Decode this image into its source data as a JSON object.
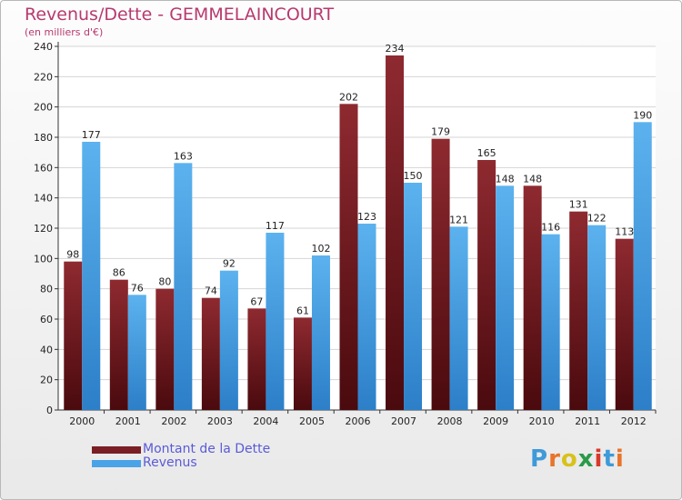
{
  "chart_data": {
    "type": "bar",
    "title": "Revenus/Dette - GEMMELAINCOURT",
    "subtitle": "(en milliers d'€)",
    "categories": [
      "2000",
      "2001",
      "2002",
      "2003",
      "2004",
      "2005",
      "2006",
      "2007",
      "2008",
      "2009",
      "2010",
      "2011",
      "2012"
    ],
    "series": [
      {
        "name": "Montant de la Dette",
        "color": "#7a1e24",
        "values": [
          98,
          86,
          80,
          74,
          67,
          61,
          202,
          234,
          179,
          165,
          148,
          131,
          113
        ]
      },
      {
        "name": "Revenus",
        "color": "#4aa3e6",
        "values": [
          177,
          76,
          163,
          92,
          117,
          102,
          123,
          150,
          121,
          148,
          116,
          122,
          190
        ]
      }
    ],
    "ylim": [
      0,
      240
    ],
    "yticks": [
      0,
      20,
      40,
      60,
      80,
      100,
      120,
      140,
      160,
      180,
      200,
      220,
      240
    ],
    "grid": true,
    "legend_position": "bottom-left"
  },
  "logo": {
    "letters": [
      "P",
      "r",
      "o",
      "x",
      "i",
      "t",
      "i"
    ],
    "colors": [
      "#3e9ad9",
      "#e8742a",
      "#d8c21a",
      "#2a9a4a",
      "#d83a2a",
      "#3e9ad9",
      "#e8742a"
    ],
    "text": "Proxiti"
  }
}
